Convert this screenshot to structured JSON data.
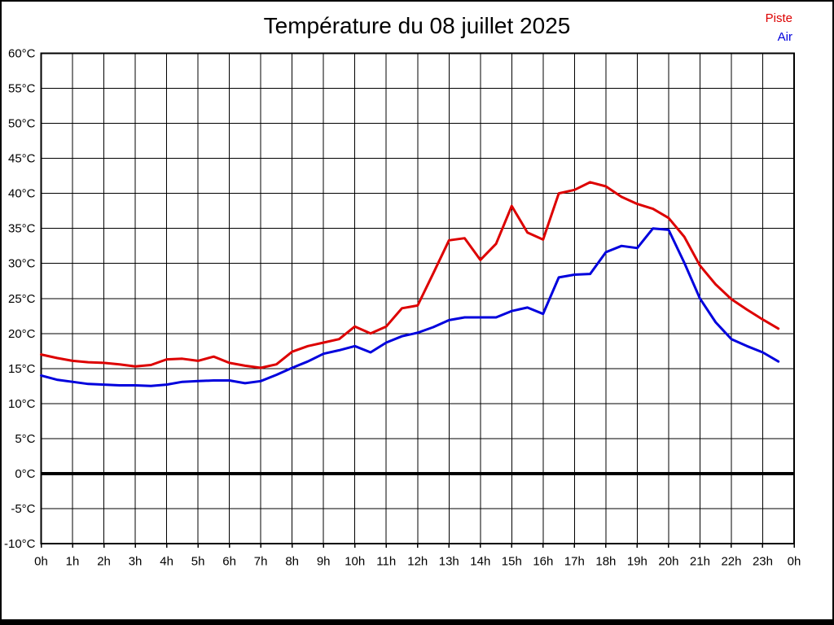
{
  "header": {
    "title": "Température du 08 juillet 2025"
  },
  "legend": {
    "items": [
      {
        "id": "piste",
        "label": "Piste",
        "color": "#dd0000"
      },
      {
        "id": "air",
        "label": "Air",
        "color": "#0000dd"
      }
    ],
    "position": "top-right"
  },
  "chart_data": {
    "type": "line",
    "title": "Température du 08 juillet 2025",
    "xlabel": "",
    "ylabel": "",
    "xlim": [
      0,
      24
    ],
    "ylim": [
      -10,
      60
    ],
    "grid": true,
    "zero_line_value": 0,
    "x_unit_hours": true,
    "x": [
      0,
      0.5,
      1,
      1.5,
      2,
      2.5,
      3,
      3.5,
      4,
      4.5,
      5,
      5.5,
      6,
      6.5,
      7,
      7.5,
      8,
      8.5,
      9,
      9.5,
      10,
      10.5,
      11,
      11.5,
      12,
      12.5,
      13,
      13.5,
      14,
      14.5,
      15,
      15.5,
      16,
      16.5,
      17,
      17.5,
      18,
      18.5,
      19,
      19.5,
      20,
      20.5,
      21,
      21.5,
      22,
      22.5,
      23,
      23.5
    ],
    "series": [
      {
        "id": "piste",
        "name": "Piste",
        "color": "#dd0000",
        "values": [
          17.0,
          16.5,
          16.1,
          15.9,
          15.8,
          15.6,
          15.3,
          15.5,
          16.3,
          16.4,
          16.1,
          16.7,
          15.8,
          15.4,
          15.1,
          15.6,
          17.4,
          18.2,
          18.7,
          19.2,
          21.0,
          20.0,
          21.0,
          23.6,
          24.0,
          28.6,
          33.3,
          33.6,
          30.5,
          32.8,
          38.2,
          34.4,
          33.4,
          40.0,
          40.5,
          41.6,
          41.0,
          39.5,
          38.5,
          37.8,
          36.5,
          33.8,
          29.7,
          27.0,
          24.9,
          23.4,
          22.0,
          20.7
        ]
      },
      {
        "id": "air",
        "name": "Air",
        "color": "#0000dd",
        "values": [
          14.0,
          13.4,
          13.1,
          12.8,
          12.7,
          12.6,
          12.6,
          12.5,
          12.7,
          13.1,
          13.2,
          13.3,
          13.3,
          12.9,
          13.2,
          14.1,
          15.1,
          16.0,
          17.1,
          17.6,
          18.2,
          17.3,
          18.7,
          19.6,
          20.1,
          20.9,
          21.9,
          22.3,
          22.3,
          22.3,
          23.2,
          23.7,
          22.8,
          28.0,
          28.4,
          28.5,
          31.6,
          32.5,
          32.2,
          35.0,
          34.8,
          30.1,
          25.0,
          21.6,
          19.2,
          18.2,
          17.3,
          16.0
        ]
      }
    ],
    "x_ticks": [
      {
        "value": 0,
        "label": "0h"
      },
      {
        "value": 1,
        "label": "1h"
      },
      {
        "value": 2,
        "label": "2h"
      },
      {
        "value": 3,
        "label": "3h"
      },
      {
        "value": 4,
        "label": "4h"
      },
      {
        "value": 5,
        "label": "5h"
      },
      {
        "value": 6,
        "label": "6h"
      },
      {
        "value": 7,
        "label": "7h"
      },
      {
        "value": 8,
        "label": "8h"
      },
      {
        "value": 9,
        "label": "9h"
      },
      {
        "value": 10,
        "label": "10h"
      },
      {
        "value": 11,
        "label": "11h"
      },
      {
        "value": 12,
        "label": "12h"
      },
      {
        "value": 13,
        "label": "13h"
      },
      {
        "value": 14,
        "label": "14h"
      },
      {
        "value": 15,
        "label": "15h"
      },
      {
        "value": 16,
        "label": "16h"
      },
      {
        "value": 17,
        "label": "17h"
      },
      {
        "value": 18,
        "label": "18h"
      },
      {
        "value": 19,
        "label": "19h"
      },
      {
        "value": 20,
        "label": "20h"
      },
      {
        "value": 21,
        "label": "21h"
      },
      {
        "value": 22,
        "label": "22h"
      },
      {
        "value": 23,
        "label": "23h"
      },
      {
        "value": 24,
        "label": "0h"
      }
    ],
    "y_ticks": [
      {
        "value": 60,
        "label": "60°C"
      },
      {
        "value": 55,
        "label": "55°C"
      },
      {
        "value": 50,
        "label": "50°C"
      },
      {
        "value": 45,
        "label": "45°C"
      },
      {
        "value": 40,
        "label": "40°C"
      },
      {
        "value": 35,
        "label": "35°C"
      },
      {
        "value": 30,
        "label": "30°C"
      },
      {
        "value": 25,
        "label": "25°C"
      },
      {
        "value": 20,
        "label": "20°C"
      },
      {
        "value": 15,
        "label": "15°C"
      },
      {
        "value": 10,
        "label": "10°C"
      },
      {
        "value": 5,
        "label": "5°C"
      },
      {
        "value": 0,
        "label": "0°C"
      },
      {
        "value": -5,
        "label": "-5°C"
      },
      {
        "value": -10,
        "label": "-10°C"
      }
    ],
    "colors": {
      "grid": "#000000",
      "border": "#000000",
      "zero_line": "#000000",
      "background": "#ffffff"
    }
  }
}
